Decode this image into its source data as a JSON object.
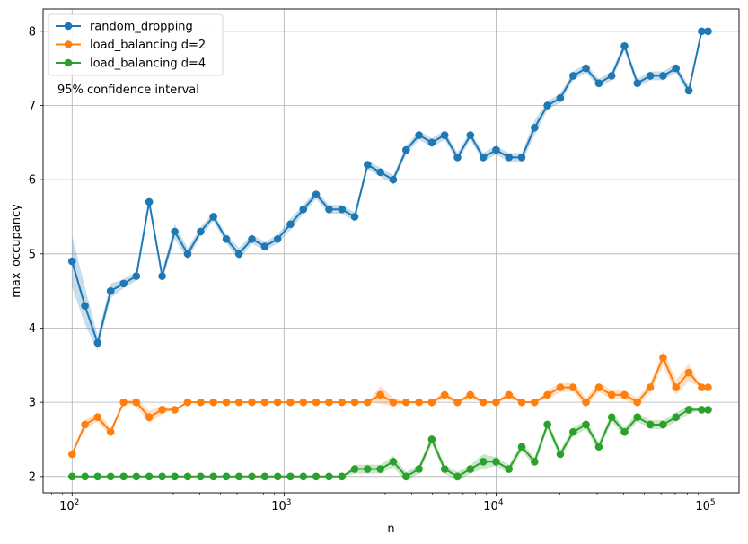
{
  "chart_data": {
    "type": "line",
    "title": "",
    "xlabel": "n",
    "ylabel": "max_occupancy",
    "xscale": "log",
    "xlim": [
      73,
      140000
    ],
    "ylim": [
      1.78,
      8.3
    ],
    "grid": true,
    "legend_position": "top-left",
    "annotation": "95% confidence interval",
    "x_ticks": [
      {
        "value": 100,
        "base": "10",
        "exp": "2"
      },
      {
        "value": 1000,
        "base": "10",
        "exp": "3"
      },
      {
        "value": 10000,
        "base": "10",
        "exp": "4"
      },
      {
        "value": 100000,
        "base": "10",
        "exp": "5"
      }
    ],
    "y_ticks": [
      2,
      3,
      4,
      5,
      6,
      7,
      8
    ],
    "x": [
      100,
      115,
      132,
      152,
      175,
      201,
      231,
      266,
      305,
      351,
      404,
      464,
      534,
      613,
      705,
      811,
      933,
      1072,
      1233,
      1417,
      1630,
      1874,
      2154,
      2477,
      2848,
      3275,
      3765,
      4329,
      4977,
      5722,
      6579,
      7565,
      8697,
      10000,
      11498,
      13219,
      15199,
      17475,
      20092,
      23101,
      26561,
      30539,
      35112,
      40370,
      46416,
      53367,
      61359,
      70548,
      81113,
      93260,
      100000
    ],
    "series": [
      {
        "name": "random_dropping",
        "color": "#1f77b4",
        "values": [
          4.9,
          4.3,
          3.8,
          4.5,
          4.6,
          4.7,
          5.7,
          4.7,
          5.3,
          5.0,
          5.3,
          5.5,
          5.2,
          5.0,
          5.2,
          5.1,
          5.2,
          5.4,
          5.6,
          5.8,
          5.6,
          5.6,
          5.5,
          6.2,
          6.1,
          6.0,
          6.4,
          6.6,
          6.5,
          6.6,
          6.3,
          6.6,
          6.3,
          6.4,
          6.3,
          6.3,
          6.7,
          7.0,
          7.1,
          7.4,
          7.5,
          7.3,
          7.4,
          7.8,
          7.3,
          7.4,
          7.4,
          7.5,
          7.2,
          8.0,
          8.0
        ],
        "ci": [
          0.35,
          0.25,
          0.1,
          0.1,
          0.06,
          0.06,
          0.0,
          0.06,
          0.1,
          0.08,
          0.06,
          0.06,
          0.06,
          0.08,
          0.06,
          0.06,
          0.06,
          0.08,
          0.06,
          0.06,
          0.06,
          0.06,
          0.06,
          0.06,
          0.06,
          0.06,
          0.06,
          0.06,
          0.06,
          0.06,
          0.06,
          0.06,
          0.06,
          0.06,
          0.06,
          0.06,
          0.1,
          0.06,
          0.06,
          0.06,
          0.06,
          0.06,
          0.06,
          0.06,
          0.06,
          0.06,
          0.06,
          0.06,
          0.06,
          0.0,
          0.0
        ]
      },
      {
        "name": "load_balancing d=2",
        "color": "#ff7f0e",
        "values": [
          2.3,
          2.7,
          2.8,
          2.6,
          3.0,
          3.0,
          2.8,
          2.9,
          2.9,
          3.0,
          3.0,
          3.0,
          3.0,
          3.0,
          3.0,
          3.0,
          3.0,
          3.0,
          3.0,
          3.0,
          3.0,
          3.0,
          3.0,
          3.0,
          3.1,
          3.0,
          3.0,
          3.0,
          3.0,
          3.1,
          3.0,
          3.1,
          3.0,
          3.0,
          3.1,
          3.0,
          3.0,
          3.1,
          3.2,
          3.2,
          3.0,
          3.2,
          3.1,
          3.1,
          3.0,
          3.2,
          3.6,
          3.2,
          3.4,
          3.2,
          3.2
        ],
        "ci": [
          0.0,
          0.06,
          0.06,
          0.06,
          0.0,
          0.06,
          0.08,
          0.06,
          0.0,
          0.0,
          0.0,
          0.0,
          0.0,
          0.0,
          0.0,
          0.0,
          0.0,
          0.0,
          0.0,
          0.0,
          0.0,
          0.0,
          0.0,
          0.0,
          0.12,
          0.06,
          0.0,
          0.0,
          0.0,
          0.06,
          0.0,
          0.06,
          0.0,
          0.0,
          0.06,
          0.0,
          0.0,
          0.06,
          0.06,
          0.06,
          0.06,
          0.06,
          0.06,
          0.06,
          0.06,
          0.06,
          0.1,
          0.1,
          0.12,
          0.0,
          0.0
        ]
      },
      {
        "name": "load_balancing d=4",
        "color": "#2ca02c",
        "values": [
          2.0,
          2.0,
          2.0,
          2.0,
          2.0,
          2.0,
          2.0,
          2.0,
          2.0,
          2.0,
          2.0,
          2.0,
          2.0,
          2.0,
          2.0,
          2.0,
          2.0,
          2.0,
          2.0,
          2.0,
          2.0,
          2.0,
          2.1,
          2.1,
          2.1,
          2.2,
          2.0,
          2.1,
          2.5,
          2.1,
          2.0,
          2.1,
          2.2,
          2.2,
          2.1,
          2.4,
          2.2,
          2.7,
          2.3,
          2.6,
          2.7,
          2.4,
          2.8,
          2.6,
          2.8,
          2.7,
          2.7,
          2.8,
          2.9,
          2.9,
          2.9
        ],
        "ci": [
          0.0,
          0.0,
          0.0,
          0.0,
          0.0,
          0.0,
          0.0,
          0.0,
          0.0,
          0.0,
          0.0,
          0.0,
          0.0,
          0.0,
          0.0,
          0.0,
          0.0,
          0.0,
          0.0,
          0.0,
          0.0,
          0.0,
          0.06,
          0.06,
          0.06,
          0.08,
          0.06,
          0.06,
          0.06,
          0.06,
          0.06,
          0.06,
          0.1,
          0.06,
          0.06,
          0.06,
          0.06,
          0.06,
          0.06,
          0.06,
          0.06,
          0.06,
          0.06,
          0.06,
          0.06,
          0.06,
          0.06,
          0.06,
          0.06,
          0.0,
          0.0
        ]
      }
    ]
  }
}
